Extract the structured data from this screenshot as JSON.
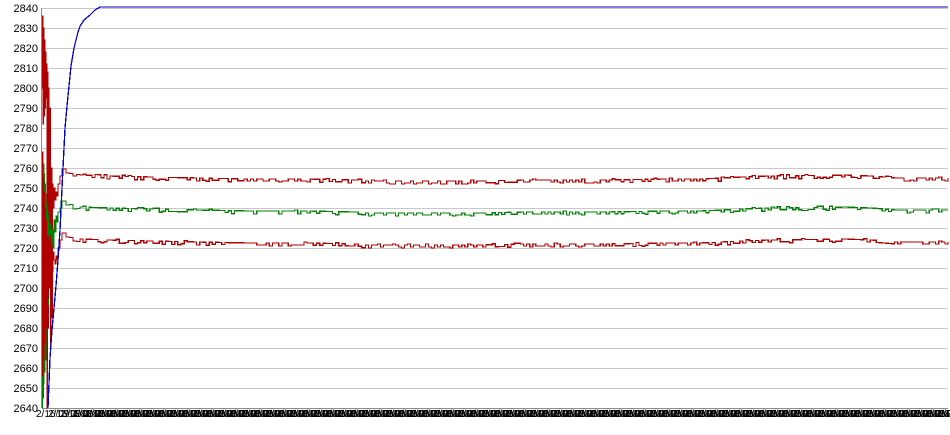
{
  "chart": {
    "background": "#ffffff",
    "grid_color": "#c9c9c9",
    "axis_color": "#8c8c8c",
    "text_color": "#000000"
  },
  "chart_data": {
    "type": "line",
    "title": "",
    "xlabel": "",
    "ylabel": "",
    "ylim": [
      2640,
      2840
    ],
    "y_tick_step": 10,
    "y_tick_labels": [
      "2840",
      "2830",
      "2820",
      "2810",
      "2800",
      "2790",
      "2780",
      "2770",
      "2760",
      "2750",
      "2740",
      "2730",
      "2720",
      "2710",
      "2700",
      "2690",
      "2680",
      "2670",
      "2660",
      "2650",
      "2640"
    ],
    "grid": true,
    "legend": "none",
    "x_axis": {
      "labels_illegible": true,
      "note": "dense overlapping date/time tick labels forming an unreadable black band across the full axis",
      "tick_label_text": "2/16/09 4:49 PM",
      "tick_count": 76,
      "tick_spacing_px": 12
    },
    "series": [
      {
        "name": "upper-red-line",
        "color": "#b00000",
        "noise": 1,
        "points": [
          [
            0,
            2800
          ],
          [
            0.00055,
            2836
          ],
          [
            0.0011,
            2782
          ],
          [
            0.0017,
            2830
          ],
          [
            0.0022,
            2786
          ],
          [
            0.0028,
            2824
          ],
          [
            0.0033,
            2790
          ],
          [
            0.0039,
            2818
          ],
          [
            0.0044,
            2795
          ],
          [
            0.005,
            2812
          ],
          [
            0.0055,
            2640
          ],
          [
            0.0061,
            2808
          ],
          [
            0.0066,
            2680
          ],
          [
            0.0072,
            2800
          ],
          [
            0.0077,
            2700
          ],
          [
            0.0088,
            2790
          ],
          [
            0.0094,
            2670
          ],
          [
            0.0099,
            2760
          ],
          [
            0.011,
            2685
          ],
          [
            0.0116,
            2752
          ],
          [
            0.0121,
            2740
          ],
          [
            0.0132,
            2750
          ],
          [
            0.0143,
            2744
          ],
          [
            0.0155,
            2748
          ],
          [
            0.0166,
            2746
          ],
          [
            0.0177,
            2752
          ],
          [
            0.0199,
            2756
          ],
          [
            0.0221,
            2759.5
          ],
          [
            0.0265,
            2757.5
          ],
          [
            0.0419,
            2756.5
          ],
          [
            0.075,
            2756
          ],
          [
            0.119,
            2755.5
          ],
          [
            0.174,
            2755
          ],
          [
            0.23,
            2754.5
          ],
          [
            0.296,
            2754.5
          ],
          [
            0.345,
            2754
          ],
          [
            0.357,
            2753.5
          ],
          [
            0.483,
            2753.5
          ],
          [
            0.528,
            2754
          ],
          [
            0.616,
            2754
          ],
          [
            0.682,
            2754.5
          ],
          [
            0.726,
            2754.5
          ],
          [
            0.77,
            2755.5
          ],
          [
            0.798,
            2756
          ],
          [
            0.886,
            2756.5
          ],
          [
            0.914,
            2756
          ],
          [
            0.941,
            2755
          ],
          [
            1,
            2755
          ]
        ]
      },
      {
        "name": "green-line",
        "color": "#008000",
        "noise": 1,
        "points": [
          [
            0.0001,
            2640
          ],
          [
            0.0004,
            2768
          ],
          [
            0.0009,
            2645
          ],
          [
            0.0013,
            2762
          ],
          [
            0.0018,
            2652
          ],
          [
            0.0022,
            2757
          ],
          [
            0.0026,
            2658
          ],
          [
            0.0031,
            2752
          ],
          [
            0.0035,
            2664
          ],
          [
            0.004,
            2747
          ],
          [
            0.0044,
            2672
          ],
          [
            0.005,
            2742
          ],
          [
            0.0055,
            2682
          ],
          [
            0.0061,
            2738
          ],
          [
            0.0066,
            2692
          ],
          [
            0.0072,
            2735
          ],
          [
            0.0077,
            2702
          ],
          [
            0.0088,
            2732
          ],
          [
            0.0099,
            2712
          ],
          [
            0.011,
            2729
          ],
          [
            0.0121,
            2720
          ],
          [
            0.0132,
            2734
          ],
          [
            0.0143,
            2728
          ],
          [
            0.0155,
            2736
          ],
          [
            0.0166,
            2733
          ],
          [
            0.0177,
            2738
          ],
          [
            0.0199,
            2740
          ],
          [
            0.0221,
            2743.5
          ],
          [
            0.0265,
            2741.5
          ],
          [
            0.0419,
            2740.5
          ],
          [
            0.075,
            2740
          ],
          [
            0.119,
            2739.5
          ],
          [
            0.174,
            2739
          ],
          [
            0.23,
            2738.5
          ],
          [
            0.296,
            2738.5
          ],
          [
            0.345,
            2738
          ],
          [
            0.357,
            2737.5
          ],
          [
            0.483,
            2737.5
          ],
          [
            0.528,
            2738
          ],
          [
            0.616,
            2738
          ],
          [
            0.682,
            2738.5
          ],
          [
            0.726,
            2738.5
          ],
          [
            0.77,
            2739.5
          ],
          [
            0.798,
            2740
          ],
          [
            0.886,
            2740.5
          ],
          [
            0.914,
            2740
          ],
          [
            0.941,
            2739
          ],
          [
            1,
            2739
          ]
        ]
      },
      {
        "name": "lower-red-line",
        "color": "#b00000",
        "noise": 1,
        "points": [
          [
            0,
            2768
          ],
          [
            0.00055,
            2656
          ],
          [
            0.0011,
            2755
          ],
          [
            0.0017,
            2665
          ],
          [
            0.0022,
            2748
          ],
          [
            0.0028,
            2672
          ],
          [
            0.0033,
            2740
          ],
          [
            0.0039,
            2680
          ],
          [
            0.0044,
            2734
          ],
          [
            0.005,
            2688
          ],
          [
            0.0055,
            2652
          ],
          [
            0.0061,
            2726
          ],
          [
            0.0066,
            2695
          ],
          [
            0.0072,
            2724
          ],
          [
            0.0077,
            2700
          ],
          [
            0.0088,
            2726
          ],
          [
            0.0094,
            2704
          ],
          [
            0.0099,
            2722
          ],
          [
            0.011,
            2708
          ],
          [
            0.0121,
            2718
          ],
          [
            0.0132,
            2714
          ],
          [
            0.0143,
            2712
          ],
          [
            0.0155,
            2716
          ],
          [
            0.0166,
            2714
          ],
          [
            0.0177,
            2720
          ],
          [
            0.0199,
            2724
          ],
          [
            0.0221,
            2727.5
          ],
          [
            0.0265,
            2725.5
          ],
          [
            0.0419,
            2724.5
          ],
          [
            0.075,
            2724
          ],
          [
            0.119,
            2723.5
          ],
          [
            0.174,
            2723
          ],
          [
            0.23,
            2722.5
          ],
          [
            0.296,
            2722.5
          ],
          [
            0.345,
            2722
          ],
          [
            0.357,
            2721.5
          ],
          [
            0.483,
            2721.5
          ],
          [
            0.528,
            2722
          ],
          [
            0.616,
            2722
          ],
          [
            0.682,
            2722.5
          ],
          [
            0.726,
            2722.5
          ],
          [
            0.77,
            2723.5
          ],
          [
            0.798,
            2724
          ],
          [
            0.886,
            2724.5
          ],
          [
            0.914,
            2724
          ],
          [
            0.941,
            2723
          ],
          [
            1,
            2723
          ]
        ]
      },
      {
        "name": "blue-line",
        "color": "#0000cc",
        "noise": 0,
        "points": [
          [
            0.0066,
            2640
          ],
          [
            0.0088,
            2665
          ],
          [
            0.011,
            2679
          ],
          [
            0.0132,
            2690
          ],
          [
            0.0155,
            2701
          ],
          [
            0.0177,
            2714
          ],
          [
            0.0199,
            2729
          ],
          [
            0.0221,
            2750
          ],
          [
            0.0254,
            2780
          ],
          [
            0.0276,
            2791
          ],
          [
            0.0298,
            2801
          ],
          [
            0.032,
            2811
          ],
          [
            0.0353,
            2820
          ],
          [
            0.0397,
            2828
          ],
          [
            0.042,
            2831
          ],
          [
            0.0464,
            2834
          ],
          [
            0.053,
            2836.5
          ],
          [
            0.0585,
            2839
          ],
          [
            0.064,
            2840.5
          ],
          [
            1,
            2840.5
          ]
        ]
      }
    ]
  }
}
